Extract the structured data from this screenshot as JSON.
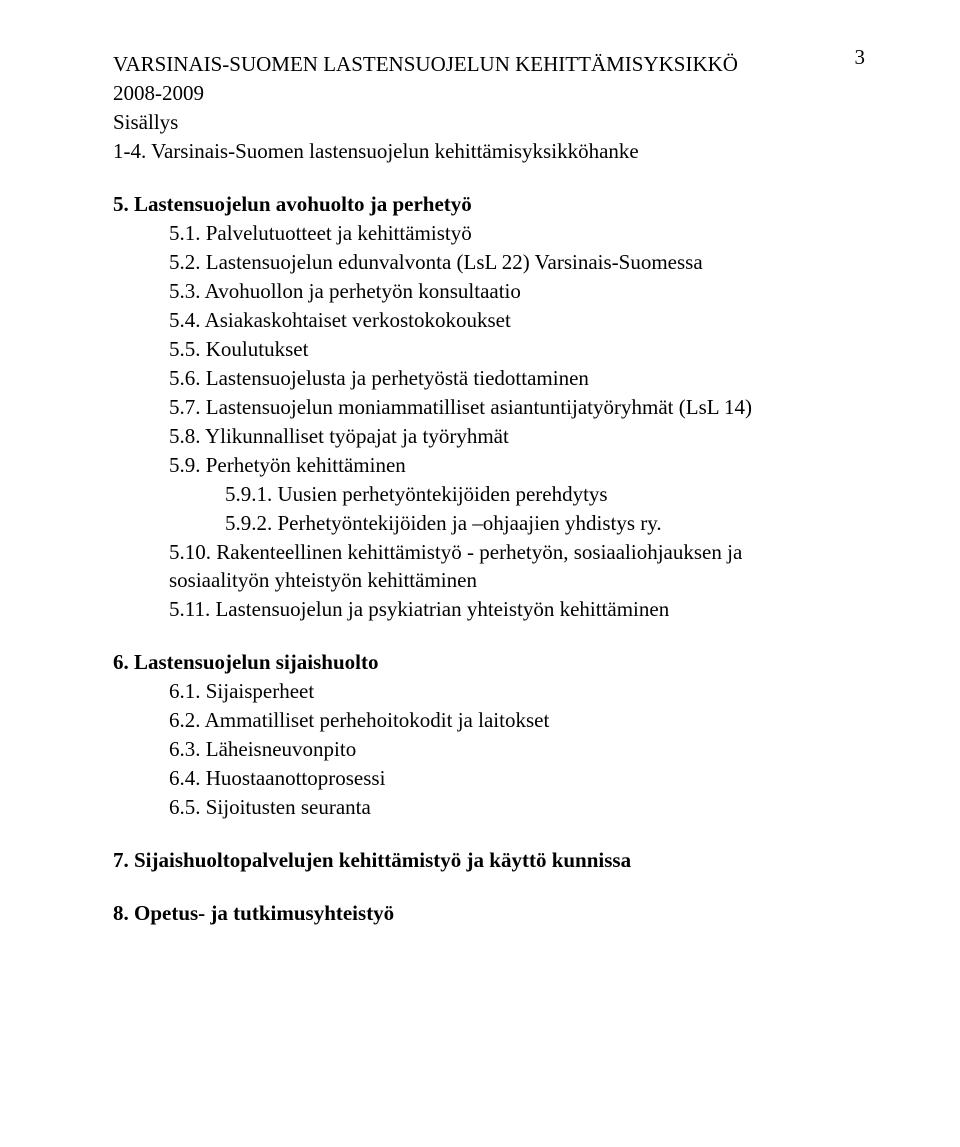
{
  "page_number": "3",
  "main_title_line1": "VARSINAIS-SUOMEN LASTENSUOJELUN KEHITTÄMISYKSIKKÖ",
  "main_title_line2": "2008-2009",
  "contents_label": "Sisällys",
  "toc": {
    "s1": "1-4. Varsinais-Suomen lastensuojelun kehittämisyksikköhanke",
    "s5": "5. Lastensuojelun avohuolto ja perhetyö",
    "s5_1": "5.1. Palvelutuotteet ja kehittämistyö",
    "s5_2": "5.2. Lastensuojelun edunvalvonta (LsL 22) Varsinais-Suomessa",
    "s5_3": "5.3. Avohuollon ja perhetyön konsultaatio",
    "s5_4": "5.4. Asiakaskohtaiset verkostokokoukset",
    "s5_5": "5.5. Koulutukset",
    "s5_6": "5.6. Lastensuojelusta ja perhetyöstä tiedottaminen",
    "s5_7": "5.7. Lastensuojelun moniammatilliset asiantuntijatyöryhmät (LsL 14)",
    "s5_8": "5.8. Ylikunnalliset työpajat ja työryhmät",
    "s5_9": "5.9. Perhetyön kehittäminen",
    "s5_9_1": "5.9.1. Uusien perhetyöntekijöiden perehdytys",
    "s5_9_2": "5.9.2. Perhetyöntekijöiden ja –ohjaajien yhdistys ry.",
    "s5_10_a": "5.10. Rakenteellinen kehittämistyö - perhetyön, sosiaaliohjauksen ja",
    "s5_10_b": "sosiaalityön yhteistyön kehittäminen",
    "s5_11": "5.11. Lastensuojelun ja psykiatrian yhteistyön kehittäminen",
    "s6": "6. Lastensuojelun sijaishuolto",
    "s6_1": "6.1. Sijaisperheet",
    "s6_2": "6.2. Ammatilliset perhehoitokodit ja laitokset",
    "s6_3": "6.3. Läheisneuvonpito",
    "s6_4": "6.4. Huostaanottoprosessi",
    "s6_5": "6.5. Sijoitusten seuranta",
    "s7": "7. Sijaishuoltopalvelujen kehittämistyö ja käyttö kunnissa",
    "s8": "8. Opetus- ja tutkimusyhteistyö"
  }
}
